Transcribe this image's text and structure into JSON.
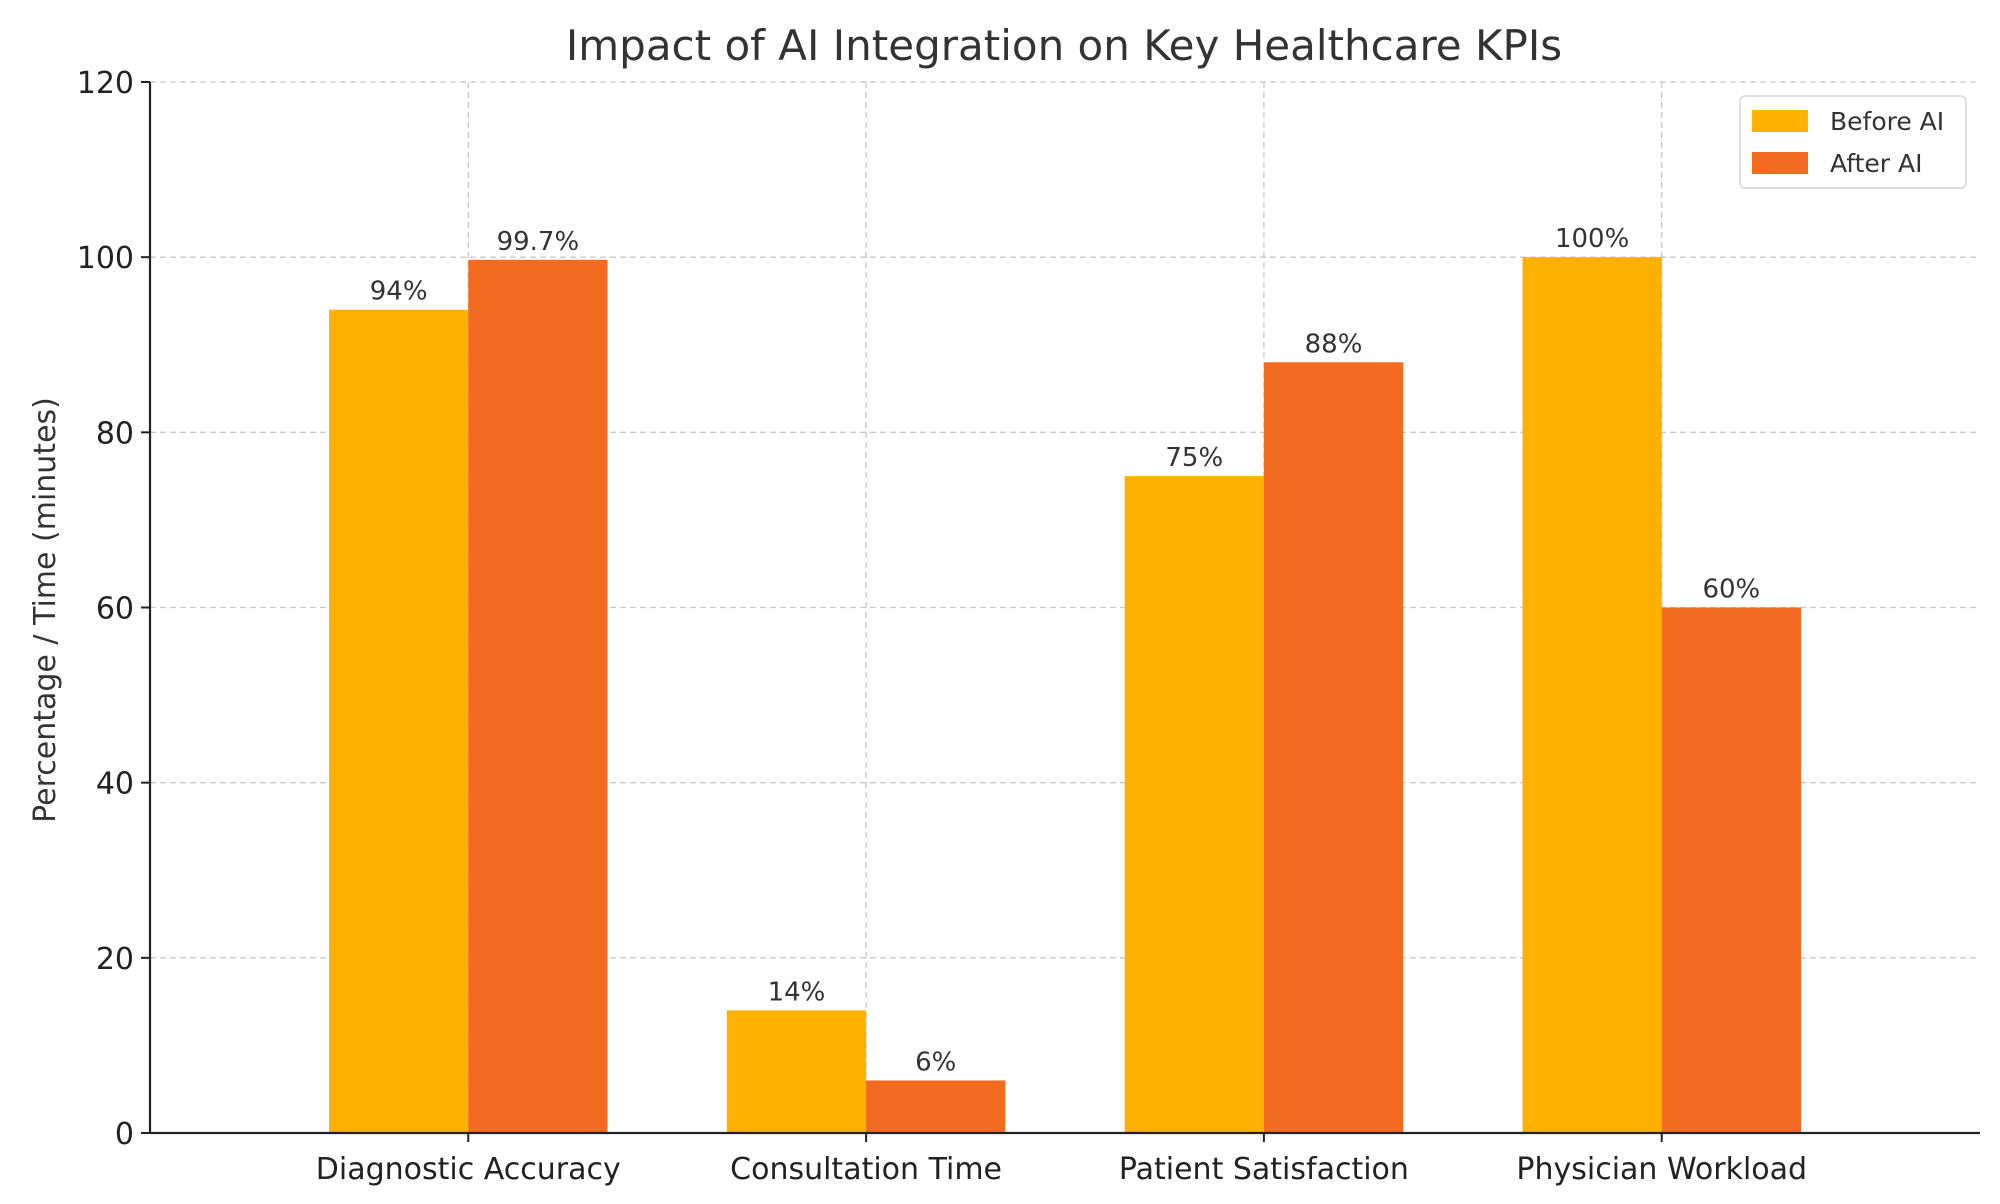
{
  "chart_data": {
    "type": "bar",
    "title": "Impact of AI Integration on Key Healthcare KPIs",
    "xlabel": "",
    "ylabel": "Percentage / Time (minutes)",
    "categories": [
      "Diagnostic Accuracy",
      "Consultation Time",
      "Patient Satisfaction",
      "Physician Workload"
    ],
    "series": [
      {
        "name": "Before AI",
        "color": "#FFB000",
        "values": [
          94,
          14,
          75,
          100
        ],
        "labels": [
          "94%",
          "14%",
          "75%",
          "100%"
        ]
      },
      {
        "name": "After AI",
        "color": "#F26B21",
        "values": [
          99.7,
          6,
          88,
          60
        ],
        "labels": [
          "99.7%",
          "6%",
          "88%",
          "60%"
        ]
      }
    ],
    "ylim": [
      0,
      120
    ],
    "yticks": [
      0,
      20,
      40,
      60,
      80,
      100,
      120
    ],
    "grid": true,
    "legend_position": "top-right"
  }
}
